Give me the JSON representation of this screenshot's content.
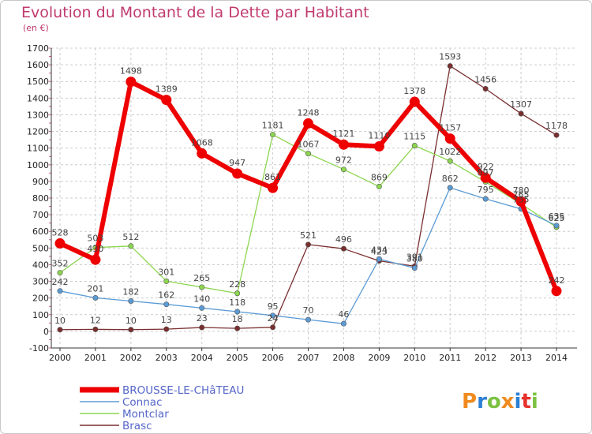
{
  "title": "Evolution du Montant de la Dette par Habitant",
  "subtitle": "(en €)",
  "logo": {
    "text": "Proxiti",
    "colors": [
      "#f08a1e",
      "#2c7fd4",
      "#7cc242",
      "#f08a1e",
      "#2c7fd4",
      "#e5322c",
      "#7cc242"
    ]
  },
  "chart_data": {
    "type": "line",
    "x": [
      "2000",
      "2001",
      "2002",
      "2003",
      "2004",
      "2005",
      "2006",
      "2007",
      "2008",
      "2009",
      "2010",
      "2011",
      "2012",
      "2013",
      "2014"
    ],
    "ylim": [
      -100,
      1700
    ],
    "yticks": [
      "-100",
      "0",
      "100",
      "200",
      "300",
      "400",
      "500",
      "600",
      "700",
      "800",
      "900",
      "1000",
      "1100",
      "1200",
      "1300",
      "1400",
      "1500",
      "1600",
      "1700"
    ],
    "grid": true,
    "legend_position": "bottom-left",
    "series": [
      {
        "name": "BROUSSE-LE-CHâTEAU",
        "color": "#ee0000",
        "values": [
          528,
          430,
          1498,
          1389,
          1068,
          947,
          861,
          1248,
          1121,
          1110,
          1378,
          1157,
          922,
          780,
          242
        ],
        "labels": [
          "528",
          "430",
          "1498",
          "1389",
          "1068",
          "947",
          "861",
          "1248",
          "1121",
          "1110",
          "1378",
          "1157",
          "922",
          "780",
          "242"
        ]
      },
      {
        "name": "Connac",
        "color": "#5b9bd5",
        "values": [
          242,
          201,
          182,
          162,
          140,
          118,
          95,
          70,
          46,
          434,
          380,
          862,
          795,
          735,
          635
        ],
        "labels": [
          "242",
          "201",
          "182",
          "162",
          "140",
          "118",
          "95",
          "70",
          "46",
          "434",
          "380",
          "862",
          "795",
          "735",
          "635"
        ]
      },
      {
        "name": "Montclar",
        "color": "#8dd650",
        "values": [
          352,
          503,
          512,
          301,
          265,
          228,
          1181,
          1067,
          972,
          869,
          1115,
          1022,
          897,
          765,
          625
        ],
        "labels": [
          "352",
          "503",
          "512",
          "301",
          "265",
          "228",
          "1181",
          "1067",
          "972",
          "869",
          "1115",
          "1022",
          "897",
          "765",
          "625"
        ]
      },
      {
        "name": "Brasc",
        "color": "#7a2e2e",
        "values": [
          10,
          12,
          10,
          13,
          23,
          18,
          24,
          521,
          496,
          423,
          391,
          1593,
          1456,
          1307,
          1178
        ],
        "labels": [
          "10",
          "12",
          "10",
          "13",
          "23",
          "18",
          "24",
          "521",
          "496",
          "423",
          "391",
          "1593",
          "1456",
          "1307",
          "1178"
        ]
      }
    ]
  }
}
